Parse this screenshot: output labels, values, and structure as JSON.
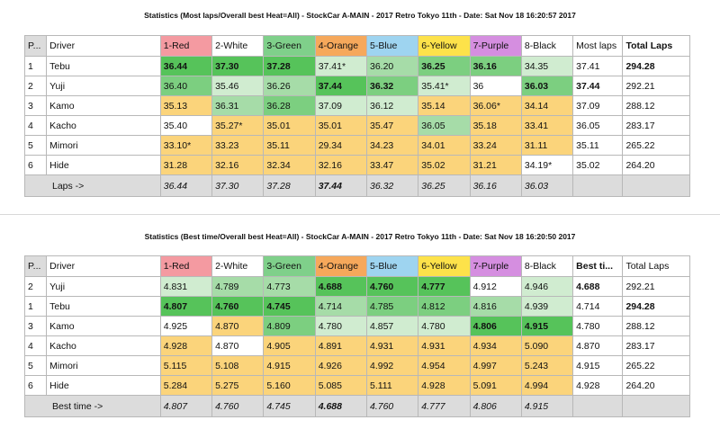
{
  "colors": {
    "top": "#56c35a",
    "high": "#7ccf80",
    "mid": "#a6dca8",
    "low": "#d0ecd0",
    "bad": "#fbd47b",
    "none": "#ffffff",
    "footer": "#dcdcdc"
  },
  "table1": {
    "title": "Statistics (Most laps/Overall best Heat=All) - StockCar A-MAIN - 2017 Retro Tokyo 11th - Date: Sat Nov 18 16:20:57 2017",
    "headers": [
      "P...",
      "Driver",
      "1-Red",
      "2-White",
      "3-Green",
      "4-Orange",
      "5-Blue",
      "6-Yellow",
      "7-Purple",
      "8-Black",
      "Most laps",
      "Total Laps"
    ],
    "rows": [
      {
        "pos": "1",
        "driver": "Tebu",
        "cells": [
          "36.44",
          "37.30",
          "37.28",
          "37.41*",
          "36.20",
          "36.25",
          "36.16",
          "34.35"
        ],
        "fills": [
          "top",
          "top",
          "top",
          "low",
          "mid",
          "high",
          "high",
          "low"
        ],
        "bold": [
          true,
          true,
          true,
          false,
          false,
          true,
          true,
          false
        ],
        "most": "37.41",
        "mostBold": false,
        "total": "294.28",
        "totalBold": true
      },
      {
        "pos": "2",
        "driver": "Yuji",
        "cells": [
          "36.40",
          "35.46",
          "36.26",
          "37.44",
          "36.32",
          "35.41*",
          "36",
          "36.03"
        ],
        "fills": [
          "high",
          "low",
          "mid",
          "top",
          "high",
          "low",
          "none",
          "high"
        ],
        "bold": [
          false,
          false,
          false,
          true,
          true,
          false,
          false,
          true
        ],
        "most": "37.44",
        "mostBold": true,
        "total": "292.21",
        "totalBold": false
      },
      {
        "pos": "3",
        "driver": "Kamo",
        "cells": [
          "35.13",
          "36.31",
          "36.28",
          "37.09",
          "36.12",
          "35.14",
          "36.06*",
          "34.14"
        ],
        "fills": [
          "bad",
          "mid",
          "high",
          "low",
          "low",
          "bad",
          "bad",
          "bad"
        ],
        "bold": [
          false,
          false,
          false,
          false,
          false,
          false,
          false,
          false
        ],
        "most": "37.09",
        "mostBold": false,
        "total": "288.12",
        "totalBold": false
      },
      {
        "pos": "4",
        "driver": "Kacho",
        "cells": [
          "35.40",
          "35.27*",
          "35.01",
          "35.01",
          "35.47",
          "36.05",
          "35.18",
          "33.41"
        ],
        "fills": [
          "none",
          "bad",
          "bad",
          "bad",
          "bad",
          "mid",
          "bad",
          "bad"
        ],
        "bold": [
          false,
          false,
          false,
          false,
          false,
          false,
          false,
          false
        ],
        "most": "36.05",
        "mostBold": false,
        "total": "283.17",
        "totalBold": false
      },
      {
        "pos": "5",
        "driver": "Mimori",
        "cells": [
          "33.10*",
          "33.23",
          "35.11",
          "29.34",
          "34.23",
          "34.01",
          "33.24",
          "31.11"
        ],
        "fills": [
          "bad",
          "bad",
          "bad",
          "bad",
          "bad",
          "bad",
          "bad",
          "bad"
        ],
        "bold": [
          false,
          false,
          false,
          false,
          false,
          false,
          false,
          false
        ],
        "most": "35.11",
        "mostBold": false,
        "total": "265.22",
        "totalBold": false
      },
      {
        "pos": "6",
        "driver": "Hide",
        "cells": [
          "31.28",
          "32.16",
          "32.34",
          "32.16",
          "33.47",
          "35.02",
          "31.21",
          "34.19*"
        ],
        "fills": [
          "bad",
          "bad",
          "bad",
          "bad",
          "bad",
          "bad",
          "bad",
          "none"
        ],
        "bold": [
          false,
          false,
          false,
          false,
          false,
          false,
          false,
          false
        ],
        "most": "35.02",
        "mostBold": false,
        "total": "264.20",
        "totalBold": false
      }
    ],
    "footer": {
      "label": "Laps ->",
      "cells": [
        "36.44",
        "37.30",
        "37.28",
        "37.44",
        "36.32",
        "36.25",
        "36.16",
        "36.03"
      ],
      "bold": [
        false,
        false,
        false,
        true,
        false,
        false,
        false,
        false
      ]
    }
  },
  "table2": {
    "title": "Statistics (Best time/Overall best Heat=All) - StockCar A-MAIN - 2017 Retro Tokyo 11th - Date: Sat Nov 18 16:20:50 2017",
    "headers": [
      "P...",
      "Driver",
      "1-Red",
      "2-White",
      "3-Green",
      "4-Orange",
      "5-Blue",
      "6-Yellow",
      "7-Purple",
      "8-Black",
      "Best ti...",
      "Total Laps"
    ],
    "rows": [
      {
        "pos": "2",
        "driver": "Yuji",
        "cells": [
          "4.831",
          "4.789",
          "4.773",
          "4.688",
          "4.760",
          "4.777",
          "4.912",
          "4.946"
        ],
        "fills": [
          "low",
          "mid",
          "mid",
          "top",
          "top",
          "top",
          "none",
          "low"
        ],
        "bold": [
          false,
          false,
          false,
          true,
          true,
          true,
          false,
          false
        ],
        "most": "4.688",
        "mostBold": true,
        "total": "292.21",
        "totalBold": false
      },
      {
        "pos": "1",
        "driver": "Tebu",
        "cells": [
          "4.807",
          "4.760",
          "4.745",
          "4.714",
          "4.785",
          "4.812",
          "4.816",
          "4.939"
        ],
        "fills": [
          "top",
          "top",
          "top",
          "mid",
          "high",
          "high",
          "mid",
          "low"
        ],
        "bold": [
          true,
          true,
          true,
          false,
          false,
          false,
          false,
          false
        ],
        "most": "4.714",
        "mostBold": false,
        "total": "294.28",
        "totalBold": true
      },
      {
        "pos": "3",
        "driver": "Kamo",
        "cells": [
          "4.925",
          "4.870",
          "4.809",
          "4.780",
          "4.857",
          "4.780",
          "4.806",
          "4.915"
        ],
        "fills": [
          "none",
          "bad",
          "high",
          "low",
          "low",
          "low",
          "top",
          "top"
        ],
        "bold": [
          false,
          false,
          false,
          false,
          false,
          false,
          true,
          true
        ],
        "most": "4.780",
        "mostBold": false,
        "total": "288.12",
        "totalBold": false
      },
      {
        "pos": "4",
        "driver": "Kacho",
        "cells": [
          "4.928",
          "4.870",
          "4.905",
          "4.891",
          "4.931",
          "4.931",
          "4.934",
          "5.090"
        ],
        "fills": [
          "bad",
          "none",
          "bad",
          "bad",
          "bad",
          "bad",
          "bad",
          "bad"
        ],
        "bold": [
          false,
          false,
          false,
          false,
          false,
          false,
          false,
          false
        ],
        "most": "4.870",
        "mostBold": false,
        "total": "283.17",
        "totalBold": false
      },
      {
        "pos": "5",
        "driver": "Mimori",
        "cells": [
          "5.115",
          "5.108",
          "4.915",
          "4.926",
          "4.992",
          "4.954",
          "4.997",
          "5.243"
        ],
        "fills": [
          "bad",
          "bad",
          "bad",
          "bad",
          "bad",
          "bad",
          "bad",
          "bad"
        ],
        "bold": [
          false,
          false,
          false,
          false,
          false,
          false,
          false,
          false
        ],
        "most": "4.915",
        "mostBold": false,
        "total": "265.22",
        "totalBold": false
      },
      {
        "pos": "6",
        "driver": "Hide",
        "cells": [
          "5.284",
          "5.275",
          "5.160",
          "5.085",
          "5.111",
          "4.928",
          "5.091",
          "4.994"
        ],
        "fills": [
          "bad",
          "bad",
          "bad",
          "bad",
          "bad",
          "bad",
          "bad",
          "bad"
        ],
        "bold": [
          false,
          false,
          false,
          false,
          false,
          false,
          false,
          false
        ],
        "most": "4.928",
        "mostBold": false,
        "total": "264.20",
        "totalBold": false
      }
    ],
    "footer": {
      "label": "Best time ->",
      "cells": [
        "4.807",
        "4.760",
        "4.745",
        "4.688",
        "4.760",
        "4.777",
        "4.806",
        "4.915"
      ],
      "bold": [
        false,
        false,
        false,
        true,
        false,
        false,
        false,
        false
      ]
    }
  }
}
